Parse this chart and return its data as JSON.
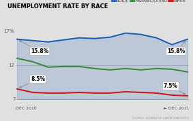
{
  "title": "UNEMPLOYMENT RATE BY RACE",
  "background_color": "#e0e0e0",
  "plot_bg_color": "#e0e0e0",
  "ylim": [
    7,
    18
  ],
  "yticks": [
    12,
    17
  ],
  "ytick_labels": [
    "12",
    "17%"
  ],
  "xlabel_left": "DEC 2010",
  "xlabel_right": "► DEC 2011",
  "xlabel_7": "7",
  "source_text": "SOURCE: BUREAU OF LABOR STATISTICS",
  "legend_entries": [
    "BLACK",
    "HISPANIC/LATINO",
    "WHITE"
  ],
  "legend_colors": [
    "#1a5db5",
    "#2e8b2e",
    "#cc1111"
  ],
  "black_data": [
    15.8,
    15.6,
    15.4,
    15.7,
    16.0,
    15.9,
    16.1,
    16.7,
    16.5,
    16.0,
    15.0,
    15.8
  ],
  "hispanic_data": [
    13.0,
    12.5,
    11.7,
    11.8,
    11.8,
    11.5,
    11.3,
    11.5,
    11.3,
    11.5,
    11.4,
    11.0
  ],
  "white_data": [
    8.5,
    8.0,
    7.9,
    7.9,
    8.0,
    7.9,
    7.9,
    8.1,
    8.0,
    7.9,
    7.6,
    7.5
  ],
  "black_color": "#1a5db5",
  "hispanic_color": "#2e8b2e",
  "white_color": "#cc1111",
  "ann_bl_start": "15.8%",
  "ann_bl_end": "15.8%",
  "ann_wh_start": "8.5%",
  "ann_wh_end": "7.5%"
}
